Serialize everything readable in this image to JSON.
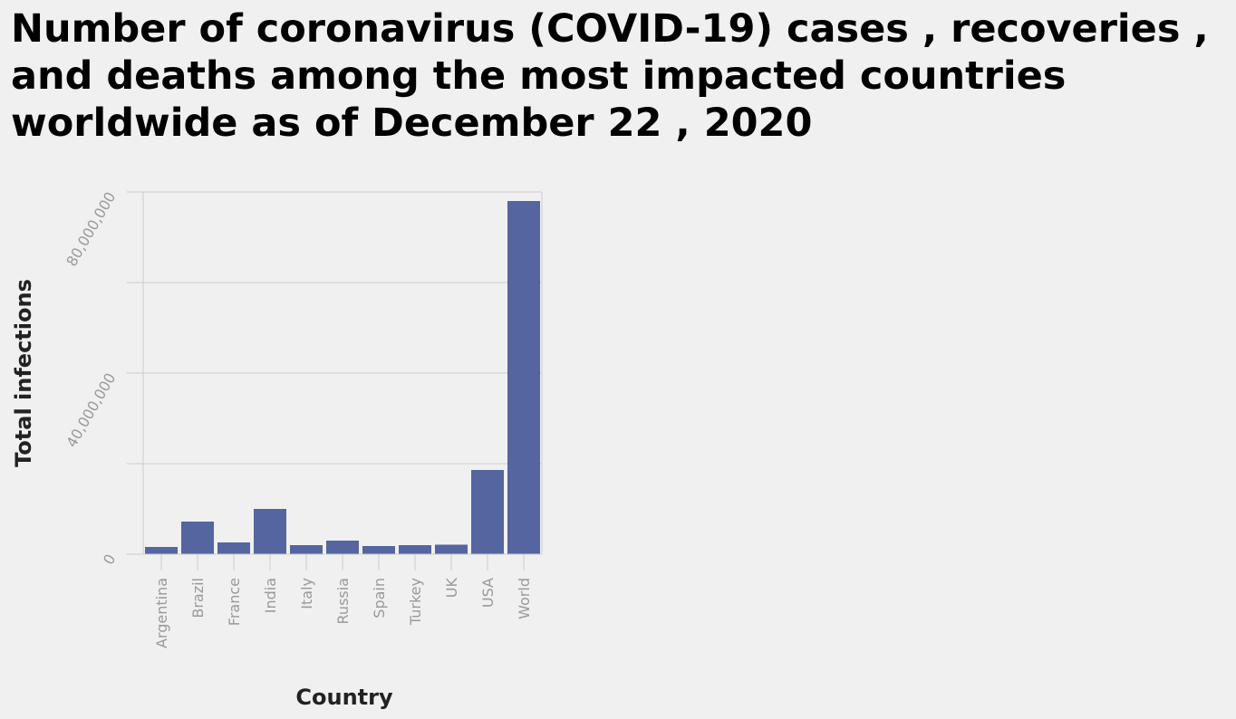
{
  "chart_data": {
    "type": "bar",
    "title": "Number of coronavirus (COVID-19) cases , recoveries , and deaths among the most impacted countries worldwide as of December 22 , 2020",
    "x_label": "Country",
    "y_label": "Total infections",
    "categories": [
      "Argentina",
      "Brazil",
      "France",
      "India",
      "Italy",
      "Russia",
      "Spain",
      "Turkey",
      "UK",
      "USA",
      "World"
    ],
    "values": [
      1600000,
      7200000,
      2600000,
      10000000,
      2000000,
      3000000,
      1800000,
      2000000,
      2100000,
      18600000,
      78000000
    ],
    "color": "#5465a0",
    "ylim": [
      0,
      80000000
    ],
    "yticks": [
      0,
      {
        "value": 20000000,
        "label": null
      },
      {
        "value": 40000000,
        "label": "40,000,000"
      },
      {
        "value": 60000000,
        "label": null
      },
      {
        "value": 80000000,
        "label": "80,000,000"
      }
    ],
    "grid": true
  }
}
